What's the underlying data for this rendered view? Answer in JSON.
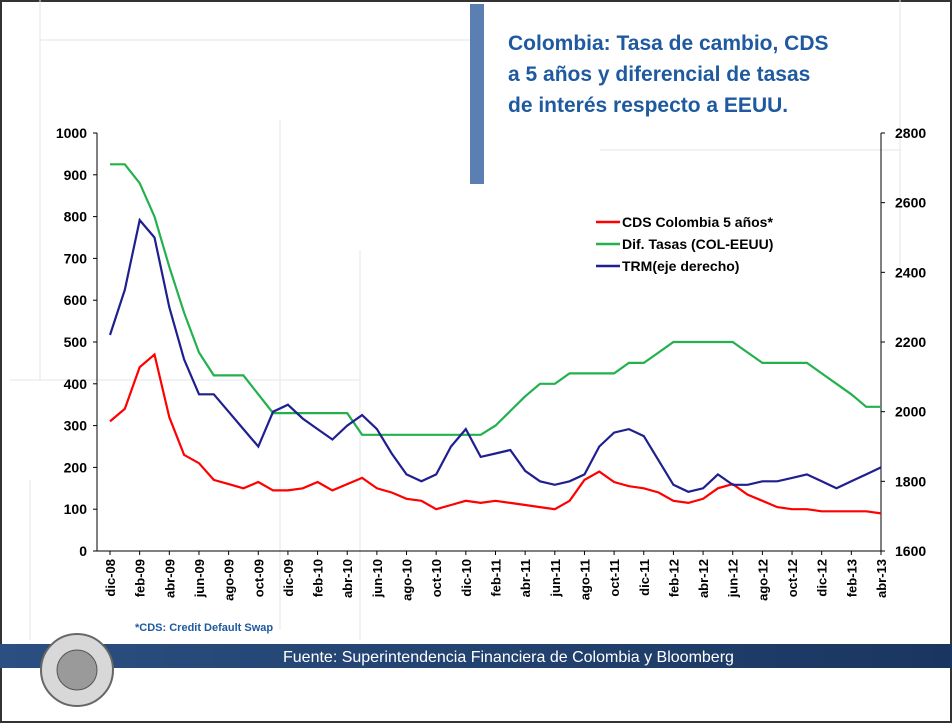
{
  "chart_data": {
    "type": "line",
    "title": [
      "Colombia: Tasa de cambio, CDS",
      "a 5 años y diferencial de tasas",
      "de interés respecto a EEUU."
    ],
    "categories": [
      "dic-08",
      null,
      "feb-09",
      null,
      "abr-09",
      null,
      "jun-09",
      null,
      "ago-09",
      null,
      "oct-09",
      null,
      "dic-09",
      null,
      "feb-10",
      null,
      "abr-10",
      null,
      "jun-10",
      null,
      "ago-10",
      null,
      "oct-10",
      null,
      "dic-10",
      null,
      "feb-11",
      null,
      "abr-11",
      null,
      "jun-11",
      null,
      "ago-11",
      null,
      "oct-11",
      null,
      "dic-11",
      null,
      "feb-12",
      null,
      "abr-12",
      null,
      "jun-12",
      null,
      "ago-12",
      null,
      "oct-12",
      null,
      "dic-12",
      null,
      "feb-13",
      null,
      "abr-13"
    ],
    "series": [
      {
        "name": "CDS Colombia 5 años*",
        "color": "#ff0000",
        "axis": "y",
        "values": [
          310,
          340,
          440,
          470,
          320,
          230,
          210,
          170,
          160,
          150,
          165,
          145,
          145,
          150,
          165,
          145,
          160,
          175,
          150,
          140,
          125,
          120,
          100,
          110,
          120,
          115,
          120,
          115,
          110,
          105,
          100,
          120,
          170,
          190,
          165,
          155,
          150,
          140,
          120,
          115,
          125,
          150,
          160,
          135,
          120,
          105,
          100,
          100,
          95,
          95,
          95,
          95,
          90
        ]
      },
      {
        "name": "Dif. Tasas (COL-EEUU)",
        "color": "#22b14c",
        "axis": "y",
        "values": [
          925,
          925,
          880,
          800,
          680,
          570,
          475,
          420,
          420,
          420,
          375,
          330,
          330,
          330,
          330,
          330,
          330,
          278,
          278,
          278,
          278,
          278,
          278,
          278,
          278,
          278,
          300,
          335,
          370,
          400,
          400,
          425,
          425,
          425,
          425,
          450,
          450,
          475,
          500,
          500,
          500,
          500,
          500,
          475,
          450,
          450,
          450,
          450,
          425,
          400,
          375,
          345,
          345
        ]
      },
      {
        "name": "TRM(eje derecho)",
        "color": "#1f1f8f",
        "axis": "y2",
        "values": [
          2220,
          2350,
          2550,
          2500,
          2300,
          2150,
          2050,
          2050,
          2000,
          1950,
          1900,
          2000,
          2020,
          1980,
          1950,
          1920,
          1960,
          1990,
          1950,
          1880,
          1820,
          1800,
          1820,
          1900,
          1950,
          1870,
          1880,
          1890,
          1830,
          1800,
          1790,
          1800,
          1820,
          1900,
          1940,
          1950,
          1930,
          1860,
          1790,
          1770,
          1780,
          1820,
          1790,
          1790,
          1800,
          1800,
          1810,
          1820,
          1800,
          1780,
          1800,
          1820,
          1840
        ]
      }
    ],
    "ylim": [
      0,
      1000
    ],
    "yticks": [
      0,
      100,
      200,
      300,
      400,
      500,
      600,
      700,
      800,
      900,
      1000
    ],
    "y2lim": [
      1600,
      2800
    ],
    "y2ticks": [
      1600,
      1800,
      2000,
      2200,
      2400,
      2600,
      2800
    ],
    "legend": "top-right",
    "grid": false
  },
  "footnote": "*CDS: Credit Default Swap",
  "source": "Fuente: Superintendencia Financiera de Colombia y Bloomberg"
}
